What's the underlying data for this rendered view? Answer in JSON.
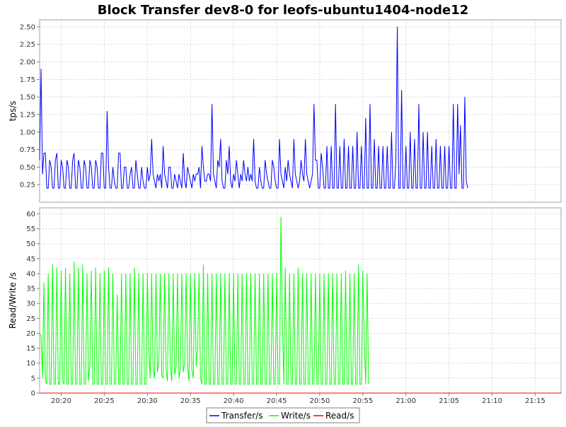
{
  "chart_data": {
    "type": "line",
    "title": "Block Transfer dev8-0 for leofs-ubuntu1404-node12",
    "x_range": [
      "20:17:30",
      "21:18:00"
    ],
    "x_ticks": [
      "20:20",
      "20:25",
      "20:30",
      "20:35",
      "20:40",
      "20:45",
      "20:50",
      "20:55",
      "21:00",
      "21:05",
      "21:10",
      "21:15"
    ],
    "colors": {
      "transfer": "#0000ff",
      "write": "#00ff00",
      "read": "#ff0000"
    },
    "panels": [
      {
        "ylabel": "tps/s",
        "ylim": [
          0,
          2.6
        ],
        "y_ticks": [
          "0.25",
          "0.50",
          "0.75",
          "1.00",
          "1.25",
          "1.50",
          "1.75",
          "2.00",
          "2.25",
          "2.50"
        ],
        "series": [
          {
            "name": "Transfer/s",
            "color": "#0000ff",
            "interval_seconds": 10,
            "start": "20:17:30",
            "values": [
              0.6,
              1.9,
              0.4,
              0.7,
              0.7,
              0.2,
              0.2,
              0.6,
              0.5,
              0.2,
              0.2,
              0.6,
              0.7,
              0.2,
              0.2,
              0.6,
              0.5,
              0.2,
              0.2,
              0.6,
              0.5,
              0.2,
              0.2,
              0.6,
              0.7,
              0.2,
              0.2,
              0.6,
              0.5,
              0.2,
              0.2,
              0.6,
              0.5,
              0.2,
              0.2,
              0.6,
              0.5,
              0.2,
              0.2,
              0.6,
              0.5,
              0.2,
              0.2,
              0.7,
              0.7,
              0.2,
              0.2,
              1.3,
              0.5,
              0.2,
              0.2,
              0.5,
              0.3,
              0.2,
              0.2,
              0.7,
              0.7,
              0.2,
              0.2,
              0.5,
              0.5,
              0.2,
              0.2,
              0.4,
              0.5,
              0.2,
              0.2,
              0.6,
              0.4,
              0.2,
              0.2,
              0.5,
              0.3,
              0.2,
              0.2,
              0.5,
              0.3,
              0.4,
              0.9,
              0.4,
              0.3,
              0.2,
              0.4,
              0.3,
              0.4,
              0.2,
              0.8,
              0.4,
              0.3,
              0.2,
              0.5,
              0.5,
              0.2,
              0.2,
              0.4,
              0.3,
              0.2,
              0.4,
              0.3,
              0.2,
              0.7,
              0.3,
              0.2,
              0.5,
              0.4,
              0.3,
              0.2,
              0.4,
              0.3,
              0.4,
              0.4,
              0.5,
              0.2,
              0.8,
              0.5,
              0.3,
              0.3,
              0.4,
              0.4,
              0.3,
              1.4,
              0.4,
              0.3,
              0.2,
              0.6,
              0.5,
              0.9,
              0.3,
              0.2,
              0.2,
              0.6,
              0.4,
              0.8,
              0.3,
              0.2,
              0.4,
              0.3,
              0.6,
              0.4,
              0.2,
              0.4,
              0.3,
              0.6,
              0.4,
              0.3,
              0.5,
              0.3,
              0.4,
              0.3,
              0.9,
              0.3,
              0.2,
              0.2,
              0.5,
              0.3,
              0.2,
              0.2,
              0.6,
              0.4,
              0.3,
              0.2,
              0.2,
              0.6,
              0.5,
              0.3,
              0.2,
              0.2,
              0.9,
              0.4,
              0.3,
              0.2,
              0.5,
              0.3,
              0.6,
              0.4,
              0.3,
              0.2,
              0.9,
              0.4,
              0.3,
              0.2,
              0.3,
              0.6,
              0.4,
              0.3,
              0.9,
              0.4,
              0.3,
              0.2,
              0.3,
              0.4,
              1.4,
              0.6,
              0.6,
              0.2,
              0.2,
              0.7,
              0.5,
              0.2,
              0.2,
              0.8,
              0.2,
              0.2,
              0.8,
              0.2,
              0.2,
              1.4,
              0.2,
              0.2,
              0.8,
              0.2,
              0.2,
              0.9,
              0.2,
              0.2,
              0.8,
              0.2,
              0.2,
              0.8,
              0.2,
              0.2,
              1.0,
              0.2,
              0.2,
              0.8,
              0.2,
              0.2,
              1.2,
              0.2,
              0.2,
              1.4,
              0.2,
              0.2,
              0.9,
              0.2,
              0.2,
              0.8,
              0.2,
              0.2,
              0.8,
              0.2,
              0.2,
              0.8,
              0.2,
              0.2,
              1.0,
              0.2,
              0.2,
              0.6,
              2.5,
              0.2,
              0.2,
              1.6,
              0.2,
              0.2,
              0.8,
              0.2,
              0.2,
              1.0,
              0.2,
              0.2,
              0.9,
              0.2,
              0.2,
              1.4,
              0.2,
              0.2,
              1.0,
              0.2,
              0.2,
              1.0,
              0.2,
              0.2,
              0.8,
              0.2,
              0.2,
              0.9,
              0.2,
              0.2,
              0.8,
              0.2,
              0.2,
              0.8,
              0.2,
              0.2,
              0.8,
              0.2,
              0.2,
              1.4,
              0.2,
              0.2,
              1.4,
              0.4,
              1.1,
              0.2,
              0.2,
              1.5,
              0.3,
              0.2
            ]
          }
        ]
      },
      {
        "ylabel": "Read/Write /s",
        "ylim": [
          0,
          62
        ],
        "y_ticks": [
          "0",
          "5",
          "10",
          "15",
          "20",
          "25",
          "30",
          "35",
          "40",
          "45",
          "50",
          "55",
          "60"
        ],
        "series": [
          {
            "name": "Write/s",
            "color": "#00ff00",
            "interval_seconds": 10,
            "start": "20:17:30",
            "values": [
              20,
              19,
              5,
              37,
              4,
              3,
              40,
              3,
              3,
              43,
              3,
              3,
              42,
              3,
              3,
              41,
              4,
              3,
              42,
              3,
              3,
              40,
              3,
              3,
              44,
              3,
              3,
              42,
              3,
              3,
              43,
              3,
              3,
              40,
              4,
              10,
              41,
              3,
              3,
              42,
              3,
              3,
              40,
              3,
              3,
              41,
              3,
              3,
              42,
              3,
              3,
              40,
              3,
              3,
              33,
              3,
              3,
              40,
              3,
              3,
              40,
              3,
              3,
              40,
              3,
              3,
              42,
              3,
              3,
              40,
              3,
              3,
              40,
              3,
              3,
              40,
              14,
              5,
              40,
              8,
              5,
              40,
              7,
              10,
              40,
              6,
              5,
              40,
              8,
              4,
              40,
              9,
              4,
              40,
              6,
              9,
              40,
              5,
              8,
              40,
              7,
              10,
              40,
              9,
              4,
              40,
              8,
              5,
              40,
              9,
              15,
              40,
              5,
              3,
              43,
              3,
              3,
              40,
              3,
              3,
              40,
              3,
              3,
              40,
              3,
              3,
              40,
              3,
              3,
              40,
              3,
              3,
              40,
              3,
              3,
              40,
              3,
              3,
              40,
              3,
              3,
              40,
              3,
              3,
              40,
              3,
              3,
              40,
              3,
              3,
              40,
              3,
              3,
              40,
              3,
              3,
              40,
              3,
              3,
              40,
              3,
              3,
              40,
              3,
              3,
              40,
              3,
              3,
              59,
              24,
              3,
              42,
              3,
              3,
              40,
              3,
              3,
              40,
              3,
              3,
              42,
              3,
              3,
              40,
              3,
              3,
              40,
              3,
              3,
              40,
              3,
              3,
              40,
              3,
              3,
              40,
              3,
              3,
              40,
              3,
              3,
              40,
              3,
              3,
              40,
              3,
              3,
              40,
              3,
              3,
              40,
              3,
              3,
              41,
              3,
              3,
              40,
              3,
              3,
              40,
              3,
              3,
              43,
              3,
              3,
              41,
              18,
              3,
              40,
              3
            ]
          },
          {
            "name": "Read/s",
            "color": "#ff0000",
            "interval_seconds": 10,
            "start": "20:17:30",
            "values": [
              0,
              0
            ]
          }
        ]
      }
    ],
    "legend": [
      "Transfer/s",
      "Write/s",
      "Read/s"
    ],
    "legend_position": "bottom-center",
    "grid": true
  }
}
